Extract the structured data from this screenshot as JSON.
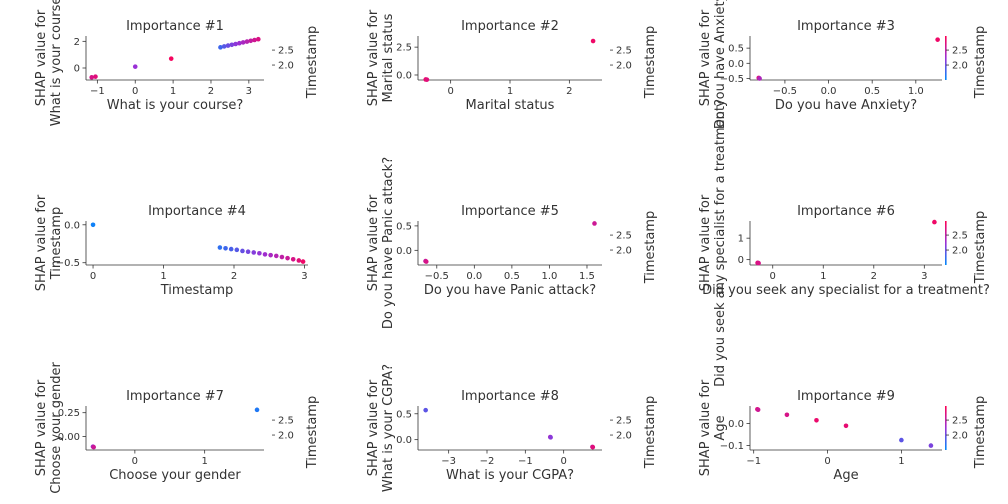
{
  "figure": {
    "colorbar_label": "Timestamp",
    "colorbar_ticks": [
      "2.5",
      "2.0"
    ]
  },
  "colors": {
    "low": "#008afb",
    "high": "#ff0052",
    "axis": "#333333"
  },
  "chart_data": [
    {
      "type": "scatter",
      "title": "Importance #1",
      "xlabel": "What is your course?",
      "ylabel": "SHAP value for\nWhat is your course?",
      "xlim": [
        -1.3,
        3.4
      ],
      "ylim": [
        -0.9,
        2.4
      ],
      "xticks": [
        -1,
        0,
        1,
        2,
        3
      ],
      "yticks": [
        0,
        2
      ],
      "colorbar": true,
      "points": [
        [
          -1.15,
          -0.7,
          0.8
        ],
        [
          -1.05,
          -0.65,
          0.85
        ],
        [
          0.0,
          0.1,
          0.5
        ],
        [
          0.95,
          0.7,
          0.95
        ],
        [
          2.25,
          1.55,
          0.2
        ],
        [
          2.35,
          1.62,
          0.28
        ],
        [
          2.45,
          1.68,
          0.34
        ],
        [
          2.55,
          1.74,
          0.4
        ],
        [
          2.65,
          1.8,
          0.46
        ],
        [
          2.75,
          1.86,
          0.52
        ],
        [
          2.85,
          1.92,
          0.58
        ],
        [
          2.95,
          1.98,
          0.64
        ],
        [
          3.05,
          2.04,
          0.7
        ],
        [
          3.15,
          2.1,
          0.76
        ],
        [
          3.25,
          2.16,
          0.82
        ]
      ]
    },
    {
      "type": "scatter",
      "title": "Importance #2",
      "xlabel": "Marital status",
      "ylabel": "SHAP value for\nMarital status",
      "xlim": [
        -0.55,
        2.55
      ],
      "ylim": [
        -0.45,
        3.5
      ],
      "xticks": [
        0,
        1,
        2
      ],
      "yticks": [
        0.0,
        2.5
      ],
      "colorbar": true,
      "points": [
        [
          -0.42,
          -0.4,
          0.9
        ],
        [
          -0.4,
          -0.42,
          0.85
        ],
        [
          2.4,
          3.05,
          0.92
        ]
      ]
    },
    {
      "type": "scatter",
      "title": "Importance #3",
      "xlabel": "Do you have Anxiety?",
      "ylabel": "SHAP value for\nDo you have Anxiety?",
      "xlim": [
        -0.9,
        1.3
      ],
      "ylim": [
        -0.55,
        0.9
      ],
      "xticks": [
        -0.5,
        0.0,
        0.5,
        1.0
      ],
      "yticks": [
        -0.5,
        0.0,
        0.5
      ],
      "colorbar": true,
      "points": [
        [
          -0.8,
          -0.48,
          0.85
        ],
        [
          -0.79,
          -0.5,
          0.6
        ],
        [
          1.25,
          0.78,
          0.92
        ]
      ]
    },
    {
      "type": "scatter",
      "title": "Importance #4",
      "xlabel": "Timestamp",
      "ylabel": "SHAP value for\nTimestamp",
      "xlim": [
        -0.1,
        3.05
      ],
      "ylim": [
        -0.53,
        0.05
      ],
      "xticks": [
        0,
        1,
        2,
        3
      ],
      "yticks": [
        0.0,
        -0.5
      ],
      "colorbar": false,
      "points": [
        [
          0.0,
          0.0,
          0.05
        ],
        [
          1.8,
          -0.3,
          0.15
        ],
        [
          1.88,
          -0.31,
          0.2
        ],
        [
          1.96,
          -0.32,
          0.24
        ],
        [
          2.04,
          -0.33,
          0.28
        ],
        [
          2.12,
          -0.345,
          0.33
        ],
        [
          2.2,
          -0.355,
          0.38
        ],
        [
          2.28,
          -0.365,
          0.43
        ],
        [
          2.36,
          -0.375,
          0.48
        ],
        [
          2.44,
          -0.39,
          0.53
        ],
        [
          2.52,
          -0.4,
          0.58
        ],
        [
          2.6,
          -0.41,
          0.63
        ],
        [
          2.68,
          -0.425,
          0.68
        ],
        [
          2.76,
          -0.44,
          0.73
        ],
        [
          2.84,
          -0.455,
          0.8
        ],
        [
          2.92,
          -0.47,
          0.86
        ],
        [
          2.98,
          -0.485,
          0.92
        ]
      ]
    },
    {
      "type": "scatter",
      "title": "Importance #5",
      "xlabel": "Do you have Panic attack?",
      "ylabel": "SHAP value for\nDo you have Panic attack?",
      "xlim": [
        -0.75,
        1.7
      ],
      "ylim": [
        -0.3,
        0.6
      ],
      "xticks": [
        -0.5,
        0.0,
        0.5,
        1.0,
        1.5
      ],
      "yticks": [
        0.0,
        0.5
      ],
      "colorbar": true,
      "points": [
        [
          -0.65,
          -0.22,
          0.7
        ],
        [
          -0.64,
          -0.23,
          0.8
        ],
        [
          1.6,
          0.55,
          0.75
        ]
      ]
    },
    {
      "type": "scatter",
      "title": "Importance #6",
      "xlabel": "Did you seek any specialist for a treatment?",
      "ylabel": "SHAP value for\nDid you seek any specialist for a treatment?",
      "xlim": [
        -0.45,
        3.35
      ],
      "ylim": [
        -0.25,
        1.8
      ],
      "xticks": [
        0,
        1,
        2,
        3
      ],
      "yticks": [
        0,
        1
      ],
      "colorbar": true,
      "points": [
        [
          -0.3,
          -0.15,
          0.85
        ],
        [
          -0.28,
          -0.16,
          0.8
        ],
        [
          3.2,
          1.75,
          0.92
        ]
      ]
    },
    {
      "type": "scatter",
      "title": "Importance #7",
      "xlabel": "Choose your gender",
      "ylabel": "SHAP value for\nChoose your gender",
      "xlim": [
        -0.7,
        1.85
      ],
      "ylim": [
        -0.14,
        0.32
      ],
      "xticks": [
        0,
        1
      ],
      "yticks": [
        0.0,
        0.25
      ],
      "colorbar": true,
      "points": [
        [
          -0.6,
          -0.105,
          0.55
        ],
        [
          -0.59,
          -0.11,
          0.75
        ],
        [
          1.75,
          0.28,
          0.1
        ]
      ]
    },
    {
      "type": "scatter",
      "title": "Importance #8",
      "xlabel": "What is your CGPA?",
      "ylabel": "SHAP value for\nWhat is your CGPA?",
      "xlim": [
        -3.8,
        1.0
      ],
      "ylim": [
        -0.2,
        0.65
      ],
      "xticks": [
        -3,
        -2,
        -1,
        0
      ],
      "yticks": [
        0.0,
        0.5
      ],
      "colorbar": true,
      "points": [
        [
          -3.6,
          0.57,
          0.3
        ],
        [
          -0.35,
          0.05,
          0.6
        ],
        [
          -0.34,
          0.045,
          0.45
        ],
        [
          0.75,
          -0.14,
          0.7
        ],
        [
          0.76,
          -0.145,
          0.85
        ]
      ]
    },
    {
      "type": "scatter",
      "title": "Importance #9",
      "xlabel": "Age",
      "ylabel": "SHAP value for\nAge",
      "xlim": [
        -1.05,
        1.55
      ],
      "ylim": [
        -0.12,
        0.08
      ],
      "xticks": [
        -1,
        0,
        1
      ],
      "yticks": [
        0.0,
        -0.1
      ],
      "colorbar": true,
      "points": [
        [
          -0.95,
          0.065,
          0.85
        ],
        [
          -0.94,
          0.063,
          0.75
        ],
        [
          -0.55,
          0.04,
          0.8
        ],
        [
          -0.15,
          0.015,
          0.9
        ],
        [
          0.25,
          -0.01,
          0.88
        ],
        [
          1.0,
          -0.075,
          0.3
        ],
        [
          1.4,
          -0.1,
          0.4
        ]
      ]
    }
  ]
}
